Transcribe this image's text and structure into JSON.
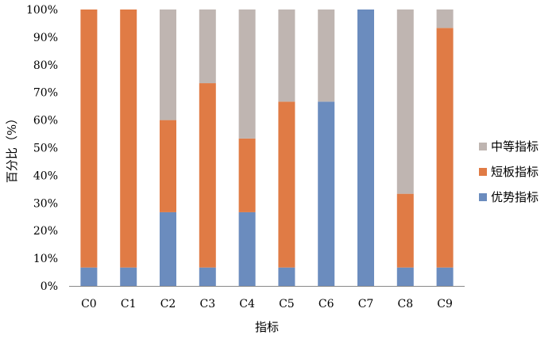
{
  "chart_data": {
    "type": "bar",
    "stacked": true,
    "categories": [
      "C0",
      "C1",
      "C2",
      "C3",
      "C4",
      "C5",
      "C6",
      "C7",
      "C8",
      "C9"
    ],
    "series": [
      {
        "name": "优势指标",
        "color": "#6b8cbe",
        "values": [
          6.67,
          6.67,
          26.67,
          6.67,
          26.67,
          6.67,
          66.67,
          100,
          6.67,
          6.67
        ]
      },
      {
        "name": "短板指标",
        "color": "#e07b45",
        "values": [
          93.33,
          93.33,
          33.33,
          66.67,
          26.67,
          60,
          0,
          0,
          26.67,
          86.67
        ]
      },
      {
        "name": "中等指标",
        "color": "#bfb5b1",
        "values": [
          0,
          0,
          40,
          26.67,
          46.67,
          33.33,
          33.33,
          0,
          66.67,
          6.67
        ]
      }
    ],
    "yticks": [
      "0%",
      "10%",
      "20%",
      "30%",
      "40%",
      "50%",
      "60%",
      "70%",
      "80%",
      "90%",
      "100%"
    ],
    "ylim": [
      0,
      100
    ],
    "xlabel": "指标",
    "ylabel": "百分比（%）",
    "grid": false,
    "legend": "right"
  }
}
